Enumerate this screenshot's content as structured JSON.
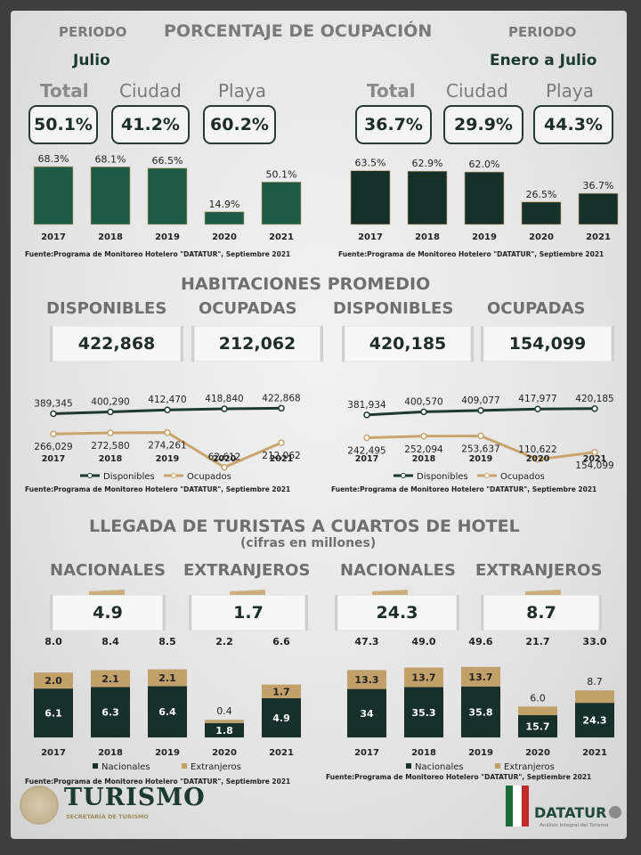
{
  "header": {
    "title": "PORCENTAJE DE OCUPACIÓN",
    "periodo_left": "PERIODO",
    "periodo_right": "PERIODO",
    "period_left": "Julio",
    "period_right": "Enero a Julio"
  },
  "kpi_labels": {
    "total": "Total",
    "ciudad": "Ciudad",
    "playa": "Playa"
  },
  "kpi_left": {
    "total": "50.1%",
    "ciudad": "41.2%",
    "playa": "60.2%"
  },
  "kpi_right": {
    "total": "36.7%",
    "ciudad": "29.9%",
    "playa": "44.3%"
  },
  "source": "Fuente:Programa de Monitoreo Hotelero \"DATATUR\", Septiembre 2021",
  "hab": {
    "title": "HABITACIONES PROMEDIO",
    "disponibles": "DISPONIBLES",
    "ocupadas": "OCUPADAS",
    "left_disp": "422,868",
    "left_ocup": "212,062",
    "right_disp": "420,185",
    "right_ocup": "154,099",
    "legend_disp": "Disponibles",
    "legend_ocup": "Ocupados"
  },
  "tur": {
    "title": "LLEGADA DE TURISTAS A CUARTOS DE HOTEL",
    "subtitle": "(cifras en millones)",
    "nacionales": "NACIONALES",
    "extranjeros": "EXTRANJEROS",
    "left_nac": "4.9",
    "left_ext": "1.7",
    "right_nac": "24.3",
    "right_ext": "8.7",
    "legend_nac": "Nacionales",
    "legend_ext": "Extranjeros"
  },
  "footer": {
    "logo_left": "TURISMO",
    "logo_left_sub": "SECRETARÍA DE TURISMO",
    "logo_right": "DATATUR",
    "logo_right_sub": "Análisis Integral del Turismo"
  },
  "colors": {
    "green_bar": "#1f5a45",
    "dark_bar": "#17302a",
    "tan": "#c2a06a",
    "line_dark": "#1d3a30",
    "line_tan": "#c9a46c"
  },
  "chart_data": [
    {
      "type": "bar",
      "categories": [
        "2017",
        "2018",
        "2019",
        "2020",
        "2021"
      ],
      "values": [
        68.3,
        68.1,
        66.5,
        14.9,
        50.1
      ],
      "labels": [
        "68.3%",
        "68.1%",
        "66.5%",
        "14.9%",
        "50.1%"
      ],
      "ylim": [
        0,
        100
      ]
    },
    {
      "type": "bar",
      "categories": [
        "2017",
        "2018",
        "2019",
        "2020",
        "2021"
      ],
      "values": [
        63.5,
        62.9,
        62.0,
        26.5,
        36.7
      ],
      "labels": [
        "63.5%",
        "62.9%",
        "62.0%",
        "26.5%",
        "36.7%"
      ],
      "ylim": [
        0,
        100
      ]
    },
    {
      "type": "line",
      "x": [
        "2017",
        "2018",
        "2019",
        "2020",
        "2021"
      ],
      "series": [
        {
          "name": "Disponibles",
          "values": [
            389345,
            400290,
            412470,
            418840,
            422868
          ],
          "labels": [
            "389,345",
            "400,290",
            "412,470",
            "418,840",
            "422,868"
          ]
        },
        {
          "name": "Ocupados",
          "values": [
            266029,
            272580,
            274261,
            62612,
            212062
          ],
          "labels": [
            "266,029",
            "272,580",
            "274,261",
            "62,612",
            "212,062"
          ]
        }
      ]
    },
    {
      "type": "line",
      "x": [
        "2017",
        "2018",
        "2019",
        "2020",
        "2021"
      ],
      "series": [
        {
          "name": "Disponibles",
          "values": [
            381934,
            400570,
            409077,
            417977,
            420185
          ],
          "labels": [
            "381,934",
            "400,570",
            "409,077",
            "417,977",
            "420,185"
          ]
        },
        {
          "name": "Ocupados",
          "values": [
            242495,
            252094,
            253637,
            110622,
            154099
          ],
          "labels": [
            "242,495",
            "252,094",
            "253,637",
            "110,622",
            "154,099"
          ]
        }
      ]
    },
    {
      "type": "bar",
      "stacked": true,
      "categories": [
        "2017",
        "2018",
        "2019",
        "2020",
        "2021"
      ],
      "series": [
        {
          "name": "Nacionales",
          "values": [
            6.1,
            6.3,
            6.4,
            1.8,
            4.9
          ]
        },
        {
          "name": "Extranjeros",
          "values": [
            2.0,
            2.1,
            2.1,
            0.4,
            1.7
          ]
        }
      ],
      "totals": [
        "8.0",
        "8.4",
        "8.5",
        "2.2",
        "6.6"
      ]
    },
    {
      "type": "bar",
      "stacked": true,
      "categories": [
        "2017",
        "2018",
        "2019",
        "2020",
        "2021"
      ],
      "series": [
        {
          "name": "Nacionales",
          "values": [
            34.0,
            35.3,
            35.8,
            15.7,
            24.3
          ]
        },
        {
          "name": "Extranjeros",
          "values": [
            13.3,
            13.7,
            13.7,
            6.0,
            8.7
          ]
        }
      ],
      "totals": [
        "47.3",
        "49.0",
        "49.6",
        "21.7",
        "33.0"
      ]
    }
  ]
}
